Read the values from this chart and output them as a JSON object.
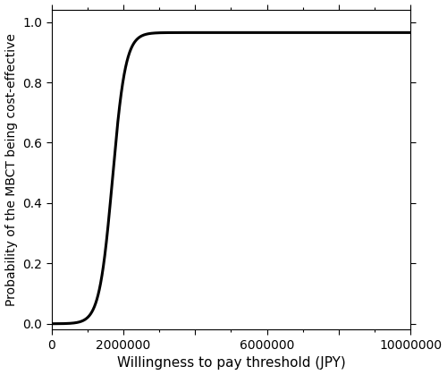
{
  "title": "",
  "xlabel": "Willingness to pay threshold (JPY)",
  "ylabel": "Probability of the MBCT being cost-effective",
  "xlim": [
    0,
    10000000
  ],
  "ylim": [
    -0.02,
    1.04
  ],
  "xticks": [
    0,
    2000000,
    4000000,
    6000000,
    8000000,
    10000000
  ],
  "xtick_labels": [
    "0",
    "2000000",
    "",
    "6000000",
    "",
    "10000000"
  ],
  "yticks": [
    0.0,
    0.2,
    0.4,
    0.6,
    0.8,
    1.0
  ],
  "line_color": "#000000",
  "line_width": 2.2,
  "background_color": "#ffffff",
  "curve_midpoint": 1700000,
  "curve_steepness": 5.5e-06,
  "curve_max": 0.965,
  "xlabel_fontsize": 11,
  "ylabel_fontsize": 10,
  "tick_fontsize": 10
}
